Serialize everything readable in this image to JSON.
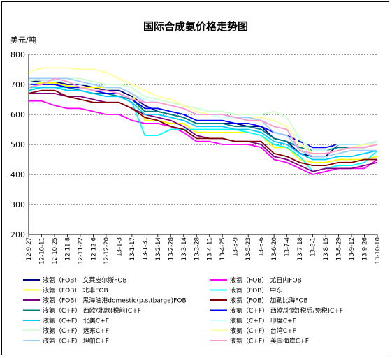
{
  "chart_data": {
    "type": "line",
    "title": "国际合成氨价格走势图",
    "ylabel": "美元/吨",
    "xlabel": "",
    "ylim": [
      200,
      800
    ],
    "yticks": [
      200,
      300,
      400,
      500,
      600,
      700,
      800
    ],
    "grid": "horizontal-dashed",
    "legend_position": "bottom",
    "x_tick_labels": [
      "12-9-27",
      "12-10-11",
      "12-10-25",
      "12-11-8",
      "12-11-22",
      "12-12-6",
      "12-12-20",
      "13-1-3",
      "13-1-17",
      "13-1-31",
      "13-2-14",
      "13-2-28",
      "13-3-14",
      "13-3-28",
      "13-4-11",
      "13-4-25",
      "13-5-9",
      "13-5-23",
      "13-6-6",
      "13-6-20",
      "13-7-4",
      "13-7-18",
      "13-8-1",
      "13-8-15",
      "13-8-29",
      "13-9-12",
      "13-9-26",
      "13-10-10"
    ],
    "series": [
      {
        "name": "液氨（FOB） 文莱皮尔斯FOB",
        "color": "#000080",
        "values": [
          710,
          710,
          710,
          700,
          700,
          690,
          680,
          680,
          660,
          630,
          610,
          600,
          590,
          570,
          570,
          570,
          570,
          560,
          560,
          520,
          510,
          470,
          460,
          460,
          500,
          500,
          500,
          510
        ]
      },
      {
        "name": "液氨（FOB） 尤日内FOB",
        "color": "#ff00ff",
        "values": [
          645,
          645,
          630,
          620,
          620,
          610,
          600,
          600,
          580,
          570,
          570,
          560,
          540,
          510,
          510,
          500,
          500,
          500,
          490,
          450,
          440,
          420,
          400,
          410,
          420,
          420,
          420,
          450
        ]
      },
      {
        "name": "液氨（FOB） 北非FOB",
        "color": "#ffff00",
        "values": [
          700,
          705,
          705,
          695,
          690,
          690,
          690,
          690,
          670,
          580,
          580,
          570,
          570,
          540,
          540,
          540,
          540,
          540,
          530,
          490,
          490,
          450,
          440,
          440,
          450,
          450,
          450,
          460
        ]
      },
      {
        "name": "液氨（FOB） 中东",
        "color": "#00ffff",
        "values": [
          690,
          690,
          690,
          690,
          680,
          670,
          670,
          660,
          640,
          530,
          530,
          550,
          550,
          550,
          550,
          550,
          550,
          540,
          530,
          500,
          490,
          460,
          410,
          420,
          430,
          430,
          440,
          480
        ]
      },
      {
        "name": "液氨（FOB） 黑海油港domestic(p.s.tbarge)FOB",
        "color": "#800080",
        "values": [
          670,
          670,
          670,
          660,
          660,
          650,
          640,
          640,
          620,
          600,
          590,
          580,
          560,
          530,
          520,
          520,
          510,
          510,
          500,
          460,
          450,
          430,
          410,
          420,
          420,
          420,
          430,
          440
        ]
      },
      {
        "name": "液氨（FOB） 加勒比海FOB",
        "color": "#800000",
        "values": [
          670,
          680,
          680,
          660,
          650,
          640,
          640,
          640,
          620,
          590,
          580,
          560,
          550,
          520,
          520,
          520,
          510,
          510,
          510,
          470,
          460,
          440,
          430,
          430,
          440,
          440,
          450,
          450
        ]
      },
      {
        "name": "液氨（C+F） 西欧/北欧(税前)C+F",
        "color": "#008080",
        "values": [
          690,
          700,
          700,
          690,
          680,
          670,
          670,
          660,
          650,
          610,
          610,
          600,
          590,
          570,
          570,
          570,
          560,
          560,
          550,
          520,
          510,
          490,
          480,
          480,
          490,
          490,
          490,
          500
        ]
      },
      {
        "name": "液氨（C+F） 西欧/北欧(税后/免税)C+F",
        "color": "#0000ff",
        "values": [
          700,
          700,
          700,
          690,
          690,
          680,
          670,
          670,
          650,
          620,
          620,
          610,
          600,
          580,
          580,
          580,
          570,
          570,
          560,
          540,
          530,
          510,
          490,
          490,
          500,
          500,
          500,
          510
        ]
      },
      {
        "name": "液氨（C+F） 北美C+F",
        "color": "#00ccff",
        "values": [
          680,
          690,
          690,
          680,
          680,
          670,
          660,
          660,
          640,
          600,
          600,
          590,
          580,
          560,
          560,
          560,
          550,
          550,
          540,
          510,
          500,
          470,
          450,
          450,
          460,
          460,
          470,
          480
        ]
      },
      {
        "name": "液氨（C+F） 印度C+F",
        "color": "#ccffff",
        "values": [
          700,
          710,
          710,
          710,
          700,
          700,
          690,
          690,
          670,
          650,
          640,
          630,
          620,
          600,
          600,
          590,
          590,
          580,
          580,
          560,
          550,
          520,
          480,
          480,
          500,
          500,
          500,
          510
        ]
      },
      {
        "name": "液氨（C+F） 远东C+F",
        "color": "#ccffcc",
        "values": [
          710,
          720,
          720,
          720,
          720,
          710,
          700,
          700,
          690,
          660,
          650,
          640,
          630,
          620,
          610,
          610,
          600,
          600,
          600,
          610,
          590,
          520,
          470,
          470,
          480,
          490,
          500,
          510
        ]
      },
      {
        "name": "液氨（C+F） 台湾C+F",
        "color": "#ffff99",
        "values": [
          740,
          755,
          755,
          755,
          750,
          750,
          740,
          720,
          700,
          680,
          660,
          650,
          630,
          610,
          600,
          600,
          590,
          590,
          590,
          580,
          560,
          500,
          470,
          470,
          480,
          490,
          500,
          500
        ]
      },
      {
        "name": "液氨（C+F） 坦帕C+F",
        "color": "#99ccff",
        "values": [
          720,
          720,
          720,
          720,
          710,
          700,
          690,
          690,
          670,
          640,
          640,
          630,
          620,
          600,
          600,
          600,
          590,
          590,
          580,
          540,
          530,
          480,
          460,
          460,
          470,
          480,
          480,
          480
        ]
      },
      {
        "name": "液氨（C+F） 英国海岸C+F",
        "color": "#ff99cc",
        "values": [
          690,
          700,
          720,
          710,
          690,
          680,
          680,
          670,
          650,
          640,
          640,
          630,
          620,
          600,
          600,
          600,
          590,
          580,
          580,
          560,
          550,
          480,
          470,
          470,
          480,
          490,
          490,
          500
        ]
      }
    ]
  }
}
